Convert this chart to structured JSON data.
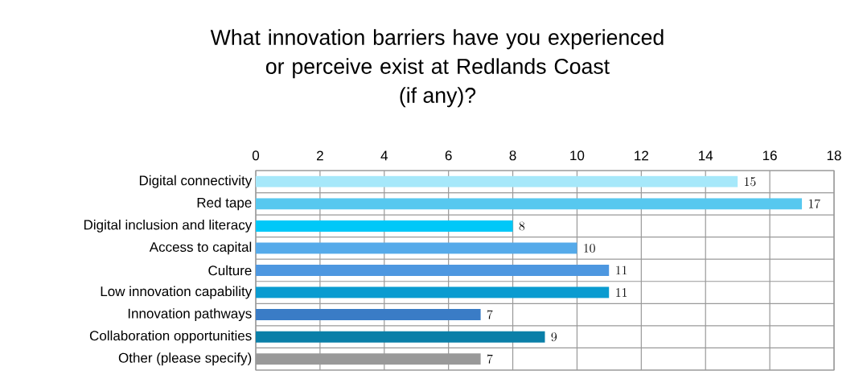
{
  "chart_data": {
    "type": "bar",
    "orientation": "horizontal",
    "title": "What innovation barriers have you experienced or perceive exist at Redlands Coast",
    "subtitle": "(if any)?",
    "categories": [
      "Digital connectivity",
      "Red tape",
      "Digital inclusion and literacy",
      "Access to capital",
      "Culture",
      "Low innovation capability",
      "Innovation pathways",
      "Collaboration opportunities",
      "Other (please specify)"
    ],
    "values": [
      15,
      17,
      8,
      10,
      11,
      11,
      7,
      9,
      7
    ],
    "colors": [
      "#a6e8fa",
      "#57c8ef",
      "#00c8f8",
      "#55aaea",
      "#4d97e0",
      "#0a9bd0",
      "#3a7cc6",
      "#0a7fa8",
      "#999999"
    ],
    "xlim": [
      0,
      18
    ],
    "xticks": [
      0,
      2,
      4,
      6,
      8,
      10,
      12,
      14,
      16,
      18
    ],
    "grid": true,
    "data_labels": true
  }
}
